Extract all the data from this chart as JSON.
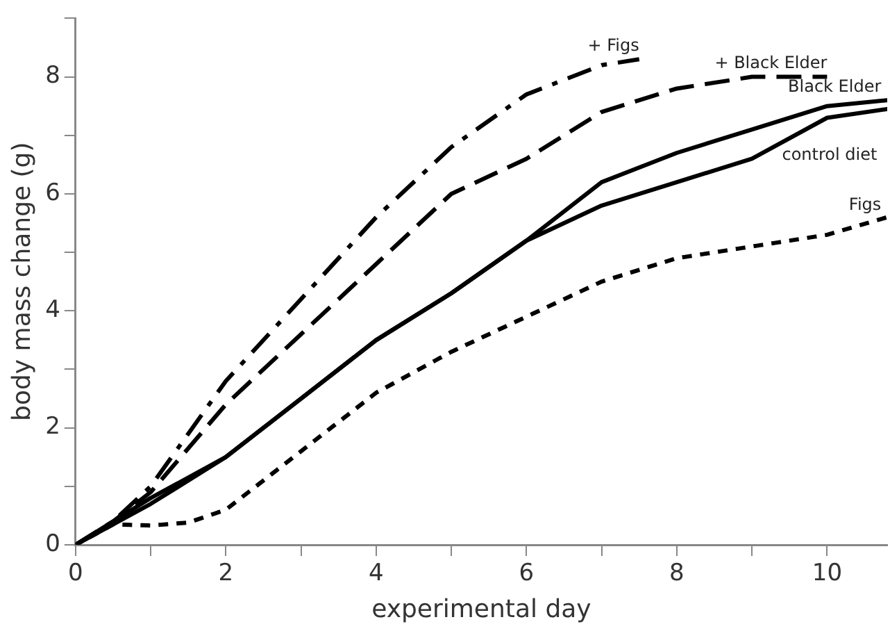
{
  "chart_data": {
    "type": "line",
    "xlabel": "experimental day",
    "ylabel": "body mass change (g)",
    "xlim": [
      0,
      10.8
    ],
    "ylim": [
      0,
      9
    ],
    "xticks": [
      0,
      {
        "value": 1,
        "label": null
      },
      2,
      {
        "value": 3,
        "label": null
      },
      4,
      {
        "value": 5,
        "label": null
      },
      6,
      {
        "value": 7,
        "label": null
      },
      8,
      {
        "value": 9,
        "label": null
      },
      10
    ],
    "yticks": [
      0,
      {
        "value": 1,
        "label": null
      },
      2,
      {
        "value": 3,
        "label": null
      },
      4,
      {
        "value": 5,
        "label": null
      },
      6,
      {
        "value": 7,
        "label": null
      },
      8,
      {
        "value": 9,
        "label": null
      }
    ],
    "grid": false,
    "legend": false,
    "marker": "none",
    "series": [
      {
        "name": "+ Figs",
        "color": "#000000",
        "line_style": "dashdot",
        "x": [
          0,
          0.5,
          1,
          2,
          3,
          4,
          5,
          6,
          7,
          7.5
        ],
        "values": [
          0,
          0.4,
          1,
          2.8,
          4.2,
          5.6,
          6.8,
          7.7,
          8.2,
          8.3
        ]
      },
      {
        "name": "+ Black Elder",
        "color": "#000000",
        "line_style": "dashed",
        "x": [
          0,
          0.5,
          1,
          2,
          3,
          4,
          5,
          6,
          7,
          8,
          9,
          10
        ],
        "values": [
          0,
          0.4,
          0.9,
          2.4,
          3.6,
          4.8,
          6,
          6.6,
          7.4,
          7.8,
          8,
          8
        ]
      },
      {
        "name": "Black Elder",
        "color": "#000000",
        "line_style": "solid",
        "x": [
          0,
          1,
          2,
          3,
          4,
          5,
          6,
          7,
          8,
          9,
          10,
          10.8
        ],
        "values": [
          0,
          0.8,
          1.5,
          2.5,
          3.5,
          4.3,
          5.2,
          6.2,
          6.7,
          7.1,
          7.5,
          7.6
        ]
      },
      {
        "name": "control diet",
        "color": "#000000",
        "line_style": "solid",
        "x": [
          0,
          1,
          2,
          3,
          4,
          5,
          6,
          7,
          8,
          9,
          10,
          10.8
        ],
        "values": [
          0,
          0.7,
          1.5,
          2.5,
          3.5,
          4.3,
          5.2,
          5.8,
          6.2,
          6.6,
          7.3,
          7.45
        ]
      },
      {
        "name": "Figs",
        "color": "#000000",
        "line_style": "dotted",
        "x": [
          0,
          0.5,
          1,
          1.5,
          2,
          3,
          4,
          5,
          6,
          7,
          8,
          9,
          10,
          10.8
        ],
        "values": [
          0,
          0.35,
          0.33,
          0.38,
          0.6,
          1.6,
          2.6,
          3.3,
          3.9,
          4.5,
          4.9,
          5.1,
          5.3,
          5.6
        ]
      }
    ]
  }
}
